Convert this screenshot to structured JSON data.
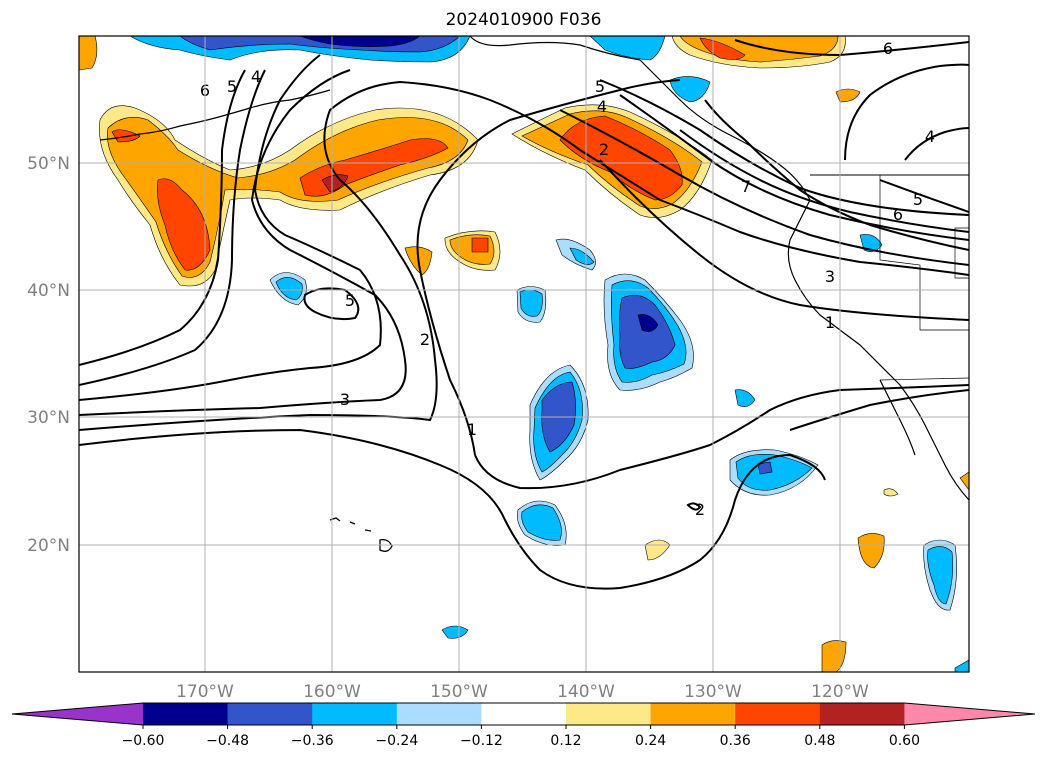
{
  "title": "2024010900 F036",
  "lat_labels": [
    "50°N",
    "40°N",
    "30°N",
    "20°N"
  ],
  "lon_labels": [
    "170°W",
    "160°W",
    "150°W",
    "140°W",
    "130°W",
    "120°W"
  ],
  "colorbar": {
    "ticks": [
      "−0.60",
      "−0.48",
      "−0.36",
      "−0.24",
      "−0.12",
      "0.12",
      "0.24",
      "0.36",
      "0.48",
      "0.60"
    ],
    "colors": [
      "#9933cc",
      "#000090",
      "#3355cc",
      "#00bbff",
      "#aaddff",
      "#ffffff",
      "#ffe888",
      "#ffa500",
      "#ff4500",
      "#b22222",
      "#ff88aa"
    ]
  },
  "contour_labels": [
    "6",
    "5",
    "4",
    "5",
    "2",
    "3",
    "1",
    "2",
    "5",
    "4",
    "2",
    "7",
    "6",
    "3",
    "1",
    "6",
    "4",
    "5"
  ],
  "colors": {
    "deep_blue": "#000090",
    "blue": "#3355cc",
    "cyan": "#00bbff",
    "light_blue": "#aaddff",
    "yellow": "#ffe888",
    "orange": "#ffa500",
    "red_orange": "#ff4500",
    "dark_red": "#b22222"
  }
}
